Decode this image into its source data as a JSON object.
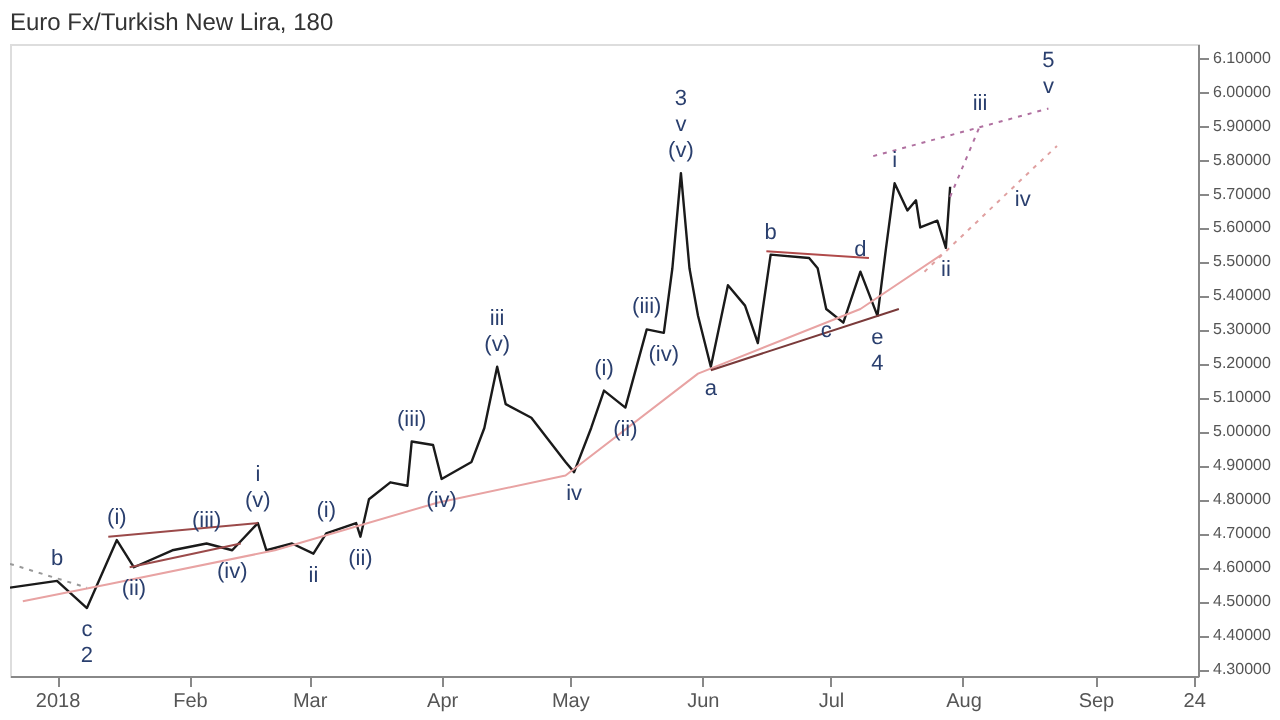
{
  "chart_data": {
    "type": "line",
    "title": "Euro Fx/Turkish New Lira, 180",
    "xlim": [
      "2017-12-21",
      "2018-09-25"
    ],
    "ylim": [
      4.28,
      6.14
    ],
    "xticks": [
      {
        "value": "2018-01-01",
        "label": "2018"
      },
      {
        "value": "2018-02-01",
        "label": "Feb"
      },
      {
        "value": "2018-03-01",
        "label": "Mar"
      },
      {
        "value": "2018-04-01",
        "label": "Apr"
      },
      {
        "value": "2018-05-01",
        "label": "May"
      },
      {
        "value": "2018-06-01",
        "label": "Jun"
      },
      {
        "value": "2018-07-01",
        "label": "Jul"
      },
      {
        "value": "2018-08-01",
        "label": "Aug"
      },
      {
        "value": "2018-09-01",
        "label": "Sep"
      },
      {
        "value": "2018-09-24",
        "label": "24"
      }
    ],
    "yticks": [
      {
        "value": 4.3,
        "label": "4.30000"
      },
      {
        "value": 4.4,
        "label": "4.40000"
      },
      {
        "value": 4.5,
        "label": "4.50000"
      },
      {
        "value": 4.6,
        "label": "4.60000"
      },
      {
        "value": 4.7,
        "label": "4.70000"
      },
      {
        "value": 4.8,
        "label": "4.80000"
      },
      {
        "value": 4.9,
        "label": "4.90000"
      },
      {
        "value": 5.0,
        "label": "5.00000"
      },
      {
        "value": 5.1,
        "label": "5.10000"
      },
      {
        "value": 5.2,
        "label": "5.20000"
      },
      {
        "value": 5.3,
        "label": "5.30000"
      },
      {
        "value": 5.4,
        "label": "5.40000"
      },
      {
        "value": 5.5,
        "label": "5.50000"
      },
      {
        "value": 5.6,
        "label": "5.60000"
      },
      {
        "value": 5.7,
        "label": "5.70000"
      },
      {
        "value": 5.8,
        "label": "5.80000"
      },
      {
        "value": 5.9,
        "label": "5.90000"
      },
      {
        "value": 6.0,
        "label": "6.00000"
      },
      {
        "value": 6.1,
        "label": "6.10000"
      }
    ],
    "grid": false,
    "series": [
      {
        "color": "#1a1a1a",
        "line_style": "solid",
        "x": [
          "2017-12-21",
          "2018-01-01",
          "2018-01-08",
          "2018-01-15",
          "2018-01-19",
          "2018-01-28",
          "2018-02-05",
          "2018-02-11",
          "2018-02-17",
          "2018-02-19",
          "2018-02-25",
          "2018-03-02",
          "2018-03-05",
          "2018-03-12",
          "2018-03-13",
          "2018-03-15",
          "2018-03-20",
          "2018-03-24",
          "2018-03-25",
          "2018-03-30",
          "2018-04-01",
          "2018-04-08",
          "2018-04-11",
          "2018-04-14",
          "2018-04-16",
          "2018-04-22",
          "2018-04-30",
          "2018-05-02",
          "2018-05-06",
          "2018-05-09",
          "2018-05-14",
          "2018-05-19",
          "2018-05-23",
          "2018-05-25",
          "2018-05-27",
          "2018-05-29",
          "2018-05-31",
          "2018-06-03",
          "2018-06-07",
          "2018-06-11",
          "2018-06-14",
          "2018-06-17",
          "2018-06-26",
          "2018-06-28",
          "2018-06-30",
          "2018-07-04",
          "2018-07-08",
          "2018-07-12",
          "2018-07-14",
          "2018-07-16",
          "2018-07-19",
          "2018-07-21",
          "2018-07-22",
          "2018-07-26",
          "2018-07-28",
          "2018-07-29"
        ],
        "values": [
          4.54,
          4.56,
          4.48,
          4.68,
          4.6,
          4.65,
          4.67,
          4.65,
          4.73,
          4.65,
          4.67,
          4.64,
          4.7,
          4.73,
          4.69,
          4.8,
          4.85,
          4.84,
          4.97,
          4.96,
          4.86,
          4.91,
          5.01,
          5.19,
          5.08,
          5.04,
          4.91,
          4.88,
          5.01,
          5.12,
          5.07,
          5.3,
          5.29,
          5.48,
          5.76,
          5.48,
          5.34,
          5.19,
          5.43,
          5.37,
          5.26,
          5.52,
          5.51,
          5.48,
          5.36,
          5.32,
          5.47,
          5.34,
          5.54,
          5.73,
          5.65,
          5.68,
          5.6,
          5.62,
          5.54,
          5.72
        ]
      },
      {
        "color": "#e8a3a3",
        "line_style": "solid",
        "x": [
          "2017-12-24",
          "2018-01-13",
          "2018-02-21",
          "2018-03-31",
          "2018-04-30",
          "2018-05-31",
          "2018-07-08",
          "2018-07-27"
        ],
        "values": [
          4.5,
          4.55,
          4.65,
          4.79,
          4.87,
          5.17,
          5.36,
          5.52
        ]
      },
      {
        "color": "#999999",
        "line_style": "dotted",
        "x": [
          "2017-12-21",
          "2018-01-08"
        ],
        "values": [
          4.61,
          4.54
        ]
      },
      {
        "color": "#9b4a4a",
        "line_style": "solid",
        "x": [
          "2018-01-13",
          "2018-02-17"
        ],
        "values": [
          4.69,
          4.73
        ]
      },
      {
        "color": "#9b4a4a",
        "line_style": "solid",
        "x": [
          "2018-01-18",
          "2018-02-13"
        ],
        "values": [
          4.6,
          4.67
        ]
      },
      {
        "color": "#7a3a3a",
        "line_style": "solid",
        "x": [
          "2018-06-03",
          "2018-07-17"
        ],
        "values": [
          5.18,
          5.36
        ]
      },
      {
        "color": "#b04a4a",
        "line_style": "solid",
        "x": [
          "2018-06-16",
          "2018-07-10"
        ],
        "values": [
          5.53,
          5.51
        ]
      },
      {
        "color": "#b070a0",
        "line_style": "dotted",
        "x": [
          "2018-07-11",
          "2018-08-21"
        ],
        "values": [
          5.81,
          5.95
        ]
      },
      {
        "color": "#e0a0a0",
        "line_style": "dotted",
        "x": [
          "2018-07-23",
          "2018-08-15",
          "2018-08-23"
        ],
        "values": [
          5.47,
          5.745,
          5.84
        ]
      },
      {
        "color": "#b070a0",
        "line_style": "dotted",
        "x": [
          "2018-07-29",
          "2018-08-05"
        ],
        "values": [
          5.69,
          5.9
        ]
      }
    ],
    "annotations": [
      {
        "text": "c",
        "x": "2018-01-08",
        "y": 4.48
      },
      {
        "text": "2",
        "x": "2018-01-08",
        "y": 4.48
      },
      {
        "text": "b",
        "x": "2018-01-01",
        "y": 4.56
      },
      {
        "text": "(i)",
        "x": "2018-01-15",
        "y": 4.68
      },
      {
        "text": "(ii)",
        "x": "2018-01-19",
        "y": 4.6
      },
      {
        "text": "(iii)",
        "x": "2018-02-05",
        "y": 4.67
      },
      {
        "text": "(iv)",
        "x": "2018-02-11",
        "y": 4.65
      },
      {
        "text": "(v)",
        "x": "2018-02-17",
        "y": 4.73
      },
      {
        "text": "i",
        "x": "2018-02-17",
        "y": 4.73
      },
      {
        "text": "ii",
        "x": "2018-03-02",
        "y": 4.64
      },
      {
        "text": "(i)",
        "x": "2018-03-05",
        "y": 4.7
      },
      {
        "text": "(ii)",
        "x": "2018-03-13",
        "y": 4.69
      },
      {
        "text": "(iii)",
        "x": "2018-03-25",
        "y": 4.97
      },
      {
        "text": "(iv)",
        "x": "2018-04-01",
        "y": 4.86
      },
      {
        "text": "(v)",
        "x": "2018-04-14",
        "y": 5.19
      },
      {
        "text": "iii",
        "x": "2018-04-14",
        "y": 5.19
      },
      {
        "text": "iv",
        "x": "2018-05-02",
        "y": 4.88
      },
      {
        "text": "(i)",
        "x": "2018-05-09",
        "y": 5.12
      },
      {
        "text": "(ii)",
        "x": "2018-05-14",
        "y": 5.07
      },
      {
        "text": "(iii)",
        "x": "2018-05-19",
        "y": 5.3
      },
      {
        "text": "(iv)",
        "x": "2018-05-23",
        "y": 5.29
      },
      {
        "text": "(v)",
        "x": "2018-05-27",
        "y": 5.76
      },
      {
        "text": "v",
        "x": "2018-05-27",
        "y": 5.76
      },
      {
        "text": "3",
        "x": "2018-05-27",
        "y": 5.76
      },
      {
        "text": "a",
        "x": "2018-06-03",
        "y": 5.19
      },
      {
        "text": "b",
        "x": "2018-06-17",
        "y": 5.52
      },
      {
        "text": "c",
        "x": "2018-06-30",
        "y": 5.36
      },
      {
        "text": "d",
        "x": "2018-07-08",
        "y": 5.47
      },
      {
        "text": "e",
        "x": "2018-07-12",
        "y": 5.34
      },
      {
        "text": "4",
        "x": "2018-07-12",
        "y": 5.34
      },
      {
        "text": "i",
        "x": "2018-07-16",
        "y": 5.73
      },
      {
        "text": "ii",
        "x": "2018-07-28",
        "y": 5.54
      },
      {
        "text": "iii",
        "x": "2018-08-05",
        "y": 5.9
      },
      {
        "text": "iv",
        "x": "2018-08-15",
        "y": 5.745
      },
      {
        "text": "v",
        "x": "2018-08-21",
        "y": 5.95
      },
      {
        "text": "5",
        "x": "2018-08-21",
        "y": 5.95
      }
    ]
  }
}
